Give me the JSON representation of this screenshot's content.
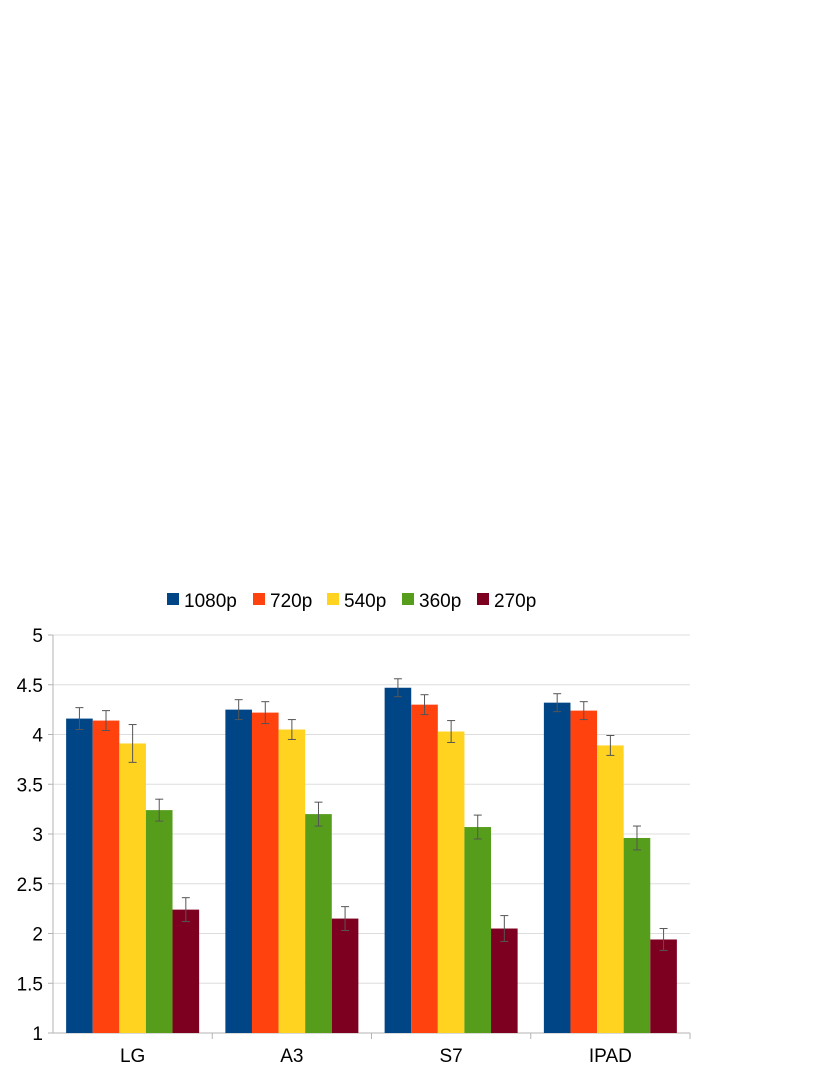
{
  "chart_data": {
    "type": "bar",
    "title": "",
    "xlabel": "",
    "ylabel": "",
    "categories": [
      "LG",
      "A3",
      "S7",
      "IPAD"
    ],
    "ylim": [
      1,
      5
    ],
    "yticks": [
      "1",
      "1.5",
      "2",
      "2.5",
      "3",
      "3.5",
      "4",
      "4.5",
      "5"
    ],
    "grid": true,
    "legend_position": "top",
    "series": [
      {
        "name": "1080p",
        "color": "#004586",
        "values": [
          4.16,
          4.25,
          4.47,
          4.32
        ],
        "errors": [
          0.11,
          0.1,
          0.09,
          0.09
        ]
      },
      {
        "name": "720p",
        "color": "#ff420e",
        "values": [
          4.14,
          4.22,
          4.3,
          4.24
        ],
        "errors": [
          0.1,
          0.11,
          0.1,
          0.09
        ]
      },
      {
        "name": "540p",
        "color": "#ffd320",
        "values": [
          3.91,
          4.05,
          4.03,
          3.89
        ],
        "errors": [
          0.19,
          0.1,
          0.11,
          0.1
        ]
      },
      {
        "name": "360p",
        "color": "#579d1c",
        "values": [
          3.24,
          3.2,
          3.07,
          2.96
        ],
        "errors": [
          0.11,
          0.12,
          0.12,
          0.12
        ]
      },
      {
        "name": "270p",
        "color": "#7e0021",
        "values": [
          2.24,
          2.15,
          2.05,
          1.94
        ],
        "errors": [
          0.12,
          0.12,
          0.13,
          0.11
        ]
      }
    ]
  }
}
